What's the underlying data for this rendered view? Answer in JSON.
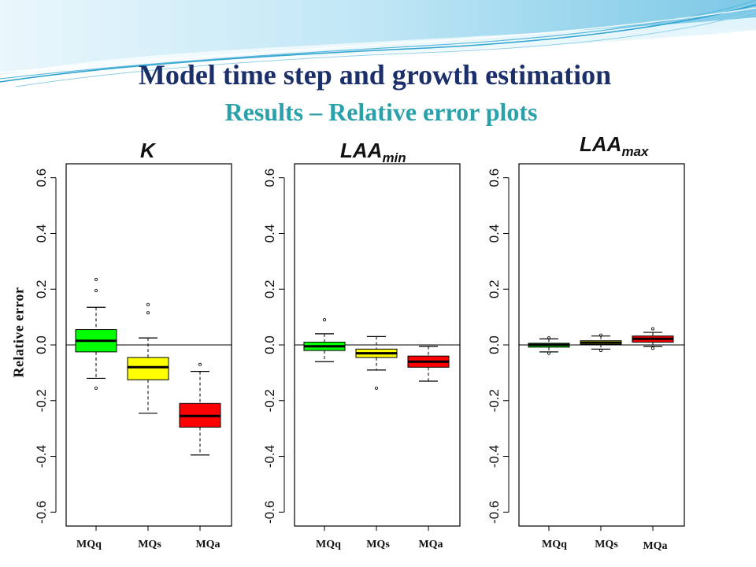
{
  "slide": {
    "title": "Model time step and growth estimation",
    "subtitle": "Results – Relative error plots",
    "ylabel": "Relative error",
    "colors": {
      "title": "#1b2f6b",
      "subtitle": "#2aa0a8",
      "banner": "#9ed8ee"
    }
  },
  "panels": [
    {
      "title_main": "K",
      "title_sub": ""
    },
    {
      "title_main": "LAA",
      "title_sub": "min"
    },
    {
      "title_main": "LAA",
      "title_sub": "max"
    }
  ],
  "chart_data": [
    {
      "type": "box",
      "title": "K",
      "categories": [
        "MQq",
        "MQs",
        "MQa"
      ],
      "colors": [
        "#00ff00",
        "#ffff00",
        "#ff0000"
      ],
      "ylim": [
        -0.65,
        0.65
      ],
      "yticks": [
        "-0.6",
        "-0.4",
        "-0.2",
        "0.0",
        "0.2",
        "0.4",
        "0.6"
      ],
      "hline": 0,
      "boxes": [
        {
          "min": -0.12,
          "q1": -0.025,
          "median": 0.015,
          "q3": 0.055,
          "max": 0.135,
          "outliers": [
            0.235,
            0.195,
            -0.155
          ]
        },
        {
          "min": -0.245,
          "q1": -0.125,
          "median": -0.08,
          "q3": -0.045,
          "max": 0.025,
          "outliers": [
            0.145,
            0.115
          ]
        },
        {
          "min": -0.395,
          "q1": -0.295,
          "median": -0.255,
          "q3": -0.21,
          "max": -0.095,
          "outliers": [
            -0.07
          ]
        }
      ]
    },
    {
      "type": "box",
      "title": "LAA min",
      "categories": [
        "MQq",
        "MQs",
        "MQa"
      ],
      "colors": [
        "#00ff00",
        "#ffff00",
        "#ff0000"
      ],
      "ylim": [
        -0.65,
        0.65
      ],
      "yticks": [
        "-0.6",
        "-0.4",
        "-0.2",
        "0.0",
        "0.2",
        "0.4",
        "0.6"
      ],
      "hline": 0,
      "boxes": [
        {
          "min": -0.06,
          "q1": -0.02,
          "median": -0.005,
          "q3": 0.01,
          "max": 0.04,
          "outliers": [
            0.09
          ]
        },
        {
          "min": -0.09,
          "q1": -0.045,
          "median": -0.03,
          "q3": -0.015,
          "max": 0.03,
          "outliers": [
            -0.155
          ]
        },
        {
          "min": -0.13,
          "q1": -0.08,
          "median": -0.06,
          "q3": -0.04,
          "max": -0.005,
          "outliers": []
        }
      ]
    },
    {
      "type": "box",
      "title": "LAA max",
      "categories": [
        "MQq",
        "MQs",
        "MQa"
      ],
      "colors": [
        "#00ff00",
        "#ffff00",
        "#ff0000"
      ],
      "ylim": [
        -0.65,
        0.65
      ],
      "yticks": [
        "-0.6",
        "-0.4",
        "-0.2",
        "0.0",
        "0.2",
        "0.4",
        "0.6"
      ],
      "hline": 0,
      "boxes": [
        {
          "min": -0.025,
          "q1": -0.008,
          "median": 0.0,
          "q3": 0.006,
          "max": 0.022,
          "outliers": [
            0.025,
            -0.03
          ]
        },
        {
          "min": -0.015,
          "q1": 0.002,
          "median": 0.008,
          "q3": 0.015,
          "max": 0.032,
          "outliers": [
            0.035,
            -0.02
          ]
        },
        {
          "min": -0.005,
          "q1": 0.01,
          "median": 0.022,
          "q3": 0.032,
          "max": 0.045,
          "outliers": [
            0.058,
            -0.012
          ]
        }
      ]
    }
  ]
}
